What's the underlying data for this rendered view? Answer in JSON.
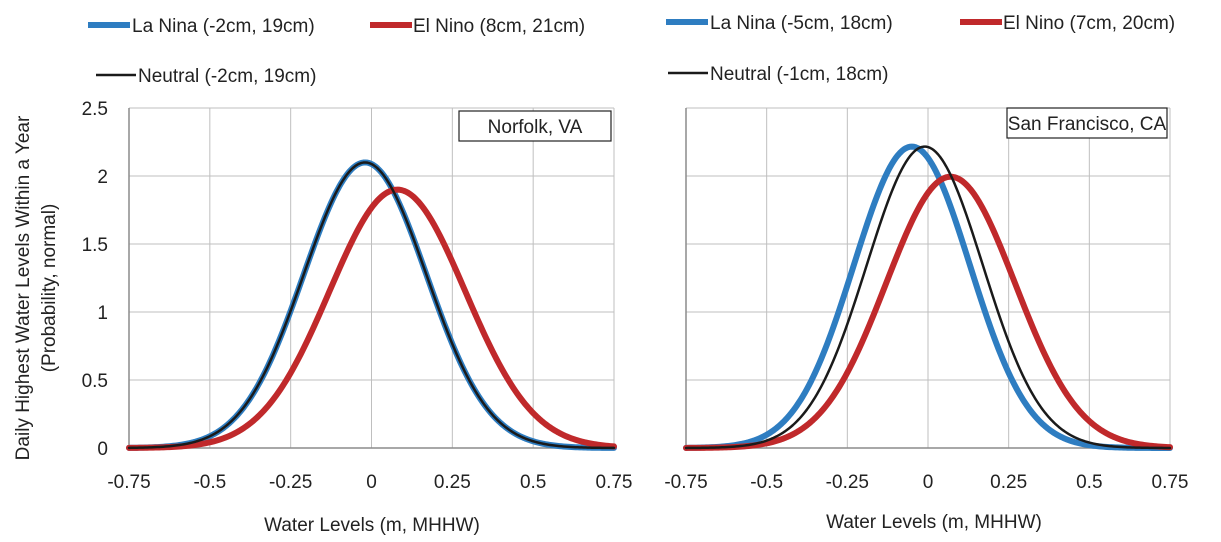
{
  "figure": {
    "ylabel_line1": "Daily Highest Water Levels Within a Year",
    "ylabel_line2": "(Probability, normal)",
    "colors": {
      "la_nina": "#2e7dc1",
      "el_nino": "#c0292b",
      "neutral": "#1a1a1a",
      "grid": "#bfbfbf",
      "axis": "#8c8c8c"
    }
  },
  "chart_data": [
    {
      "type": "line",
      "title": "Norfolk, VA",
      "xlabel": "Water Levels (m, MHHW)",
      "ylabel": "Daily Highest Water Levels Within a Year (Probability, normal)",
      "xlim": [
        -0.75,
        0.75
      ],
      "ylim": [
        0,
        2.5
      ],
      "xticks": [
        "-0.75",
        "-0.5",
        "-0.25",
        "0",
        "0.25",
        "0.5",
        "0.75"
      ],
      "yticks": [
        "0",
        "0.5",
        "1",
        "1.5",
        "2",
        "2.5"
      ],
      "grid": true,
      "legend_position": "top",
      "series": [
        {
          "name": "La Nina (-2cm, 19cm)",
          "mean": -0.02,
          "sd": 0.19,
          "color": "#2e7dc1",
          "width": "thick",
          "x": [
            -0.75,
            -0.6,
            -0.45,
            -0.3,
            -0.15,
            -0.02,
            0.1,
            0.25,
            0.4,
            0.55,
            0.75
          ],
          "y": [
            0.01,
            0.06,
            0.28,
            0.78,
            1.66,
            2.1,
            1.72,
            0.88,
            0.28,
            0.05,
            0.0
          ]
        },
        {
          "name": "El Nino (8cm, 21cm)",
          "mean": 0.08,
          "sd": 0.21,
          "color": "#c0292b",
          "width": "thick",
          "x": [
            -0.75,
            -0.6,
            -0.45,
            -0.3,
            -0.15,
            0,
            0.08,
            0.2,
            0.35,
            0.5,
            0.75
          ],
          "y": [
            0.01,
            0.02,
            0.08,
            0.37,
            1.03,
            1.77,
            1.9,
            1.62,
            0.83,
            0.26,
            0.01
          ]
        },
        {
          "name": "Neutral (-2cm, 19cm)",
          "mean": -0.02,
          "sd": 0.19,
          "color": "#1a1a1a",
          "width": "thin",
          "x": [
            -0.75,
            -0.6,
            -0.45,
            -0.3,
            -0.15,
            -0.02,
            0.1,
            0.25,
            0.4,
            0.55,
            0.75
          ],
          "y": [
            0.0,
            0.05,
            0.26,
            0.77,
            1.68,
            2.15,
            1.73,
            0.86,
            0.26,
            0.04,
            0.0
          ]
        }
      ]
    },
    {
      "type": "line",
      "title": "San Francisco, CA",
      "xlabel": "Water Levels (m, MHHW)",
      "ylabel": "",
      "xlim": [
        -0.75,
        0.75
      ],
      "ylim": [
        0,
        2.5
      ],
      "xticks": [
        "-0.75",
        "-0.5",
        "-0.25",
        "0",
        "0.25",
        "0.5",
        "0.75"
      ],
      "yticks": [],
      "grid": true,
      "legend_position": "top",
      "series": [
        {
          "name": "La Nina (-5cm, 18cm)",
          "mean": -0.05,
          "sd": 0.18,
          "color": "#2e7dc1",
          "width": "thick",
          "x": [
            -0.75,
            -0.6,
            -0.45,
            -0.3,
            -0.15,
            -0.05,
            0.1,
            0.25,
            0.4,
            0.55,
            0.75
          ],
          "y": [
            0.01,
            0.06,
            0.37,
            1.07,
            1.9,
            2.18,
            1.57,
            0.64,
            0.15,
            0.02,
            0.0
          ]
        },
        {
          "name": "El Nino (7cm, 20cm)",
          "mean": 0.07,
          "sd": 0.2,
          "color": "#c0292b",
          "width": "thick",
          "x": [
            -0.75,
            -0.6,
            -0.45,
            -0.3,
            -0.15,
            0,
            0.07,
            0.2,
            0.35,
            0.5,
            0.75
          ],
          "y": [
            0.0,
            0.02,
            0.07,
            0.36,
            1.04,
            1.88,
            1.99,
            1.61,
            0.75,
            0.2,
            0.01
          ]
        },
        {
          "name": "Neutral (-1cm, 18cm)",
          "mean": -0.01,
          "sd": 0.18,
          "color": "#1a1a1a",
          "width": "thin",
          "x": [
            -0.75,
            -0.6,
            -0.45,
            -0.3,
            -0.15,
            -0.01,
            0.1,
            0.25,
            0.4,
            0.55,
            0.75
          ],
          "y": [
            0.0,
            0.04,
            0.24,
            0.84,
            1.79,
            2.21,
            1.83,
            0.9,
            0.25,
            0.04,
            0.0
          ]
        }
      ]
    }
  ]
}
